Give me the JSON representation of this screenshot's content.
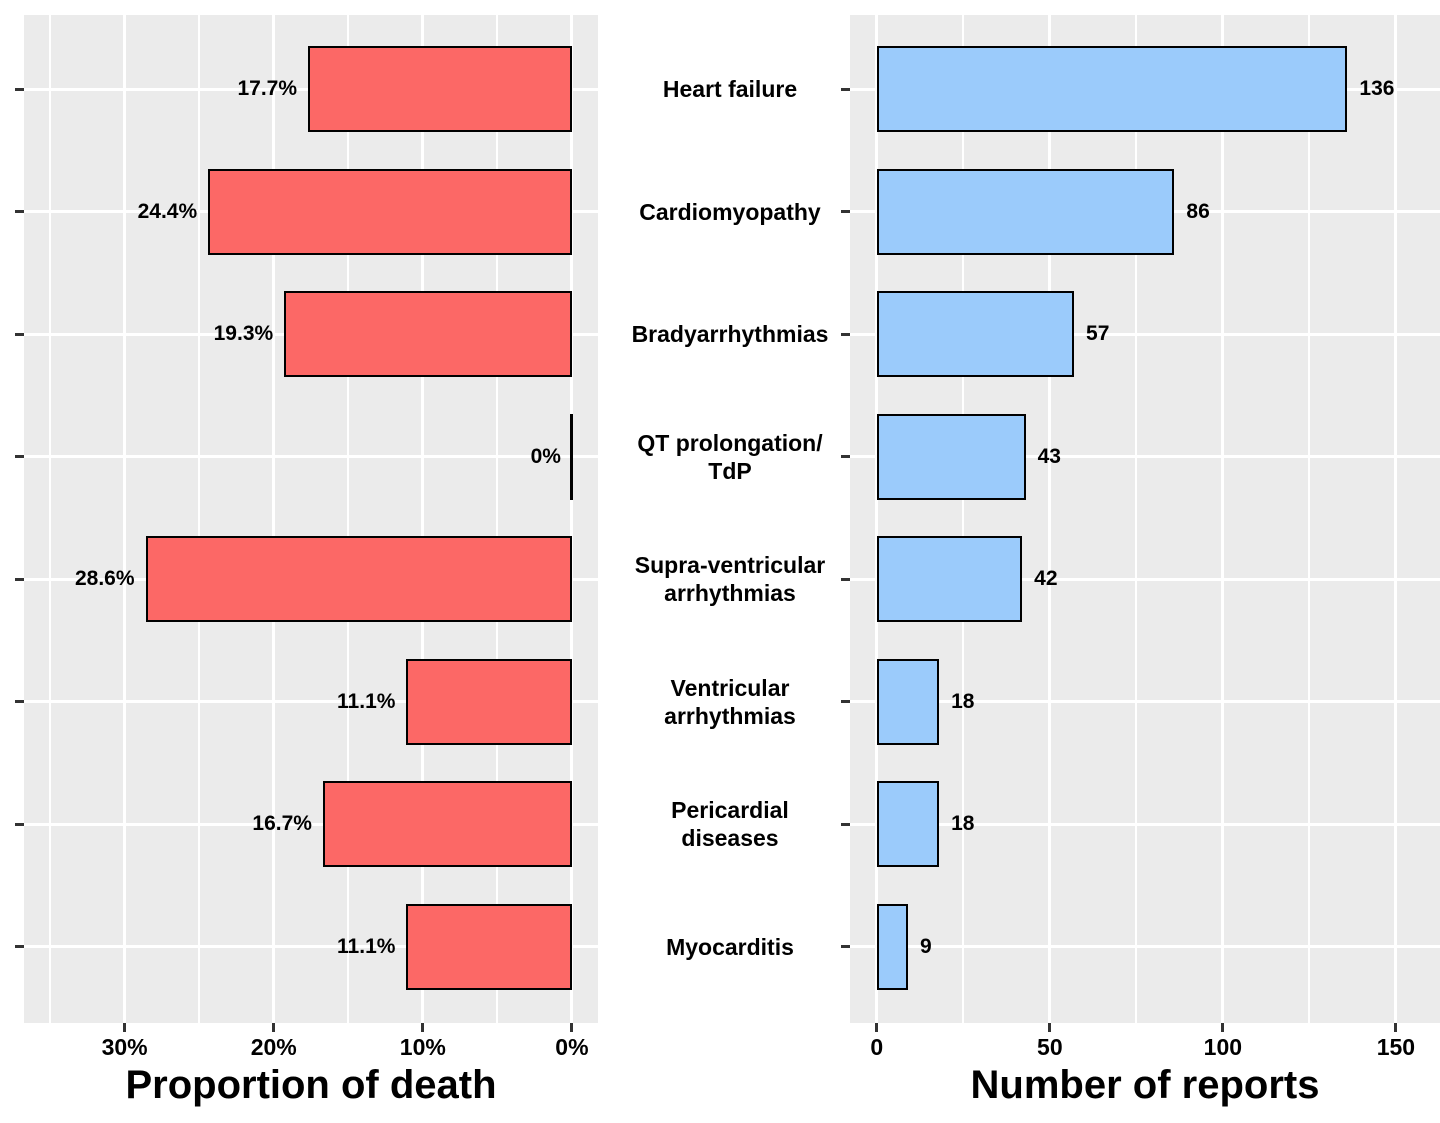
{
  "chart_data": {
    "type": "bar",
    "layout": "horizontal back-to-back (tornado), two panels sharing centered category labels",
    "grid": true,
    "legend": "none",
    "panel_bg": "#EBEBEB",
    "gridline_color": "#FFFFFF",
    "tick_color": "#333333",
    "text_color": "#000000",
    "categories": [
      "Heart failure",
      "Cardiomyopathy",
      "Bradyarrhythmias",
      "QT prolongation/\nTdP",
      "Supra-ventricular\narrhythmias",
      "Ventricular\narrhythmias",
      "Pericardial\ndiseases",
      "Myocarditis"
    ],
    "series": [
      {
        "name": "Proportion of death",
        "panel": "left",
        "xlabel": "Proportion of death",
        "values": [
          17.7,
          24.4,
          19.3,
          0,
          28.6,
          11.1,
          16.7,
          11.1
        ],
        "value_labels": [
          "17.7%",
          "24.4%",
          "19.3%",
          "0%",
          "28.6%",
          "11.1%",
          "16.7%",
          "11.1%"
        ],
        "xlim": [
          0,
          35
        ],
        "reversed": true,
        "ticks": [
          {
            "v": 30,
            "label": "30%"
          },
          {
            "v": 20,
            "label": "20%"
          },
          {
            "v": 10,
            "label": "10%"
          },
          {
            "v": 0,
            "label": "0%"
          }
        ],
        "minor_step": 5,
        "bar_color": "#FC6866",
        "bar_border": "#000000"
      },
      {
        "name": "Number of reports",
        "panel": "right",
        "xlabel": "Number of reports",
        "values": [
          136,
          86,
          57,
          43,
          42,
          18,
          18,
          9
        ],
        "value_labels": [
          "136",
          "86",
          "57",
          "43",
          "42",
          "18",
          "18",
          "9"
        ],
        "xlim": [
          0,
          155
        ],
        "reversed": false,
        "ticks": [
          {
            "v": 0,
            "label": "0"
          },
          {
            "v": 50,
            "label": "50"
          },
          {
            "v": 100,
            "label": "100"
          },
          {
            "v": 150,
            "label": "150"
          }
        ],
        "minor_step": 25,
        "bar_color": "#9BCBFB",
        "bar_border": "#000000"
      }
    ]
  }
}
